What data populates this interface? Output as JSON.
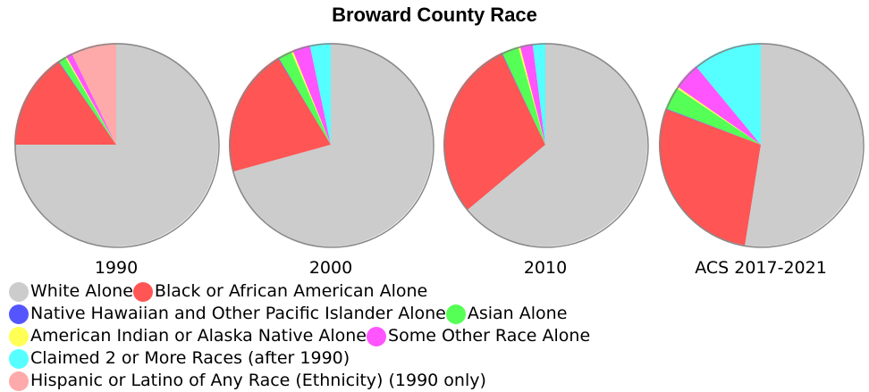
{
  "title": "Broward County Race",
  "categories": [
    "White Alone",
    "Black or African American Alone",
    "Native Hawaiian and Other Pacific Islander Alone",
    "Asian Alone",
    "American Indian or Alaska Native Alone",
    "Some Other Race Alone",
    "Claimed 2 or More Races (after 1990)",
    "Hispanic or Latino of Any Race (Ethnicity) (1990 only)"
  ],
  "colors": [
    "#cccccc",
    "#ff5555",
    "#5555ff",
    "#55ff55",
    "#ffff55",
    "#ff55ff",
    "#55ffff",
    "#ffaaaa"
  ],
  "chart_data": [
    {
      "type": "pie",
      "title": "1990",
      "values": [
        75.0,
        15.3,
        0.1,
        1.2,
        0.2,
        1.0,
        null,
        7.2
      ]
    },
    {
      "type": "pie",
      "title": "2000",
      "values": [
        70.7,
        20.6,
        0.1,
        2.2,
        0.3,
        2.8,
        3.3,
        null
      ]
    },
    {
      "type": "pie",
      "title": "2010",
      "values": [
        63.9,
        29.0,
        0.1,
        2.7,
        0.3,
        2.0,
        2.0,
        null
      ]
    },
    {
      "type": "pie",
      "title": "ACS 2017-2021",
      "values": [
        52.5,
        28.2,
        0.1,
        3.6,
        0.3,
        4.3,
        11.0,
        null
      ]
    }
  ]
}
